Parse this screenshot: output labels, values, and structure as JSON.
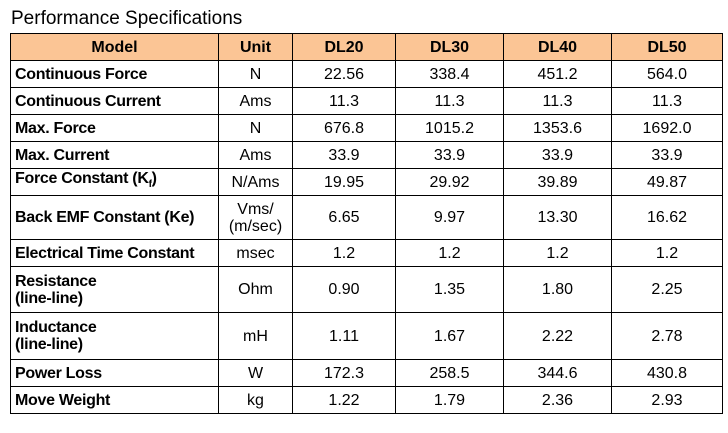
{
  "header": {
    "title": "Performance Specifications"
  },
  "table": {
    "columns": [
      "Model",
      "Unit",
      "DL20",
      "DL30",
      "DL40",
      "DL50"
    ],
    "rows": [
      [
        "Continuous Force",
        "N",
        "22.56",
        "338.4",
        "451.2",
        "564.0"
      ],
      [
        "Continuous Current",
        "Ams",
        "11.3",
        "11.3",
        "11.3",
        "11.3"
      ],
      [
        "Max. Force",
        "N",
        "676.8",
        "1015.2",
        "1353.6",
        "1692.0"
      ],
      [
        "Max. Current",
        "Ams",
        "33.9",
        "33.9",
        "33.9",
        "33.9"
      ],
      [
        [
          "Force Constant (K",
          "f",
          ")"
        ],
        "N/Ams",
        "19.95",
        "29.92",
        "39.89",
        "49.87"
      ],
      [
        "Back EMF Constant (Ke)",
        "Vms/\n(m/sec)",
        "6.65",
        "9.97",
        "13.30",
        "16.62"
      ],
      [
        "Electrical Time Constant",
        "msec",
        "1.2",
        "1.2",
        "1.2",
        "1.2"
      ],
      [
        "Resistance\n(line-line)",
        "Ohm",
        "0.90",
        "1.35",
        "1.80",
        "2.25"
      ],
      [
        "Inductance\n(line-line)",
        "mH",
        "1.11",
        "1.67",
        "2.22",
        "2.78"
      ],
      [
        "Power Loss",
        "W",
        "172.3",
        "258.5",
        "344.6",
        "430.8"
      ],
      [
        "Move Weight",
        "kg",
        "1.22",
        "1.79",
        "2.36",
        "2.93"
      ]
    ]
  }
}
